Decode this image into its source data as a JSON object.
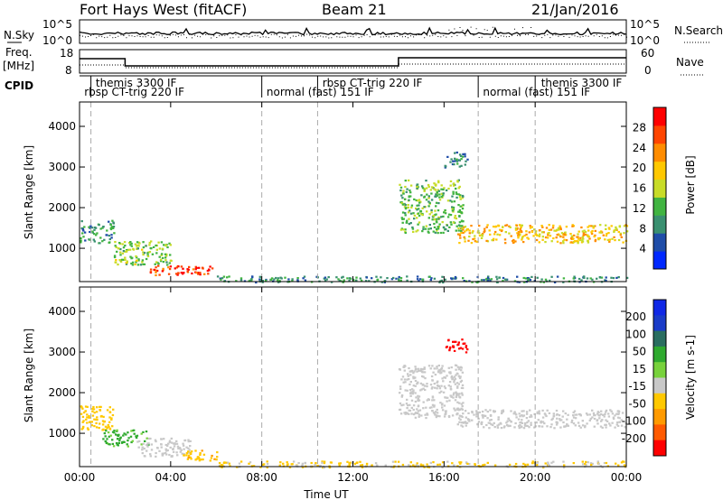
{
  "header": {
    "title": "Fort Hays West (fitACF)",
    "beam": "Beam 21",
    "date": "21/Jan/2016"
  },
  "noise_panel": {
    "left_label": "N.Sky",
    "right_label": "N.Search",
    "left_ticks": [
      "10^5",
      "10^0"
    ],
    "right_ticks": [
      "10^5",
      "10^0"
    ]
  },
  "freq_panel": {
    "left_label_1": "Freq.",
    "left_label_2": "[MHz]",
    "right_label": "Nave",
    "left_ticks": [
      "18",
      "8"
    ],
    "right_ticks": [
      "60",
      "0"
    ]
  },
  "cpid": {
    "label": "CPID",
    "segments": [
      {
        "text": "rbsp CT-trig 220 IF",
        "row": 2,
        "x_hour": 0.05
      },
      {
        "text": "themis 3300 IF",
        "row": 1,
        "x_hour": 0.55
      },
      {
        "text": "normal (fast) 151 IF",
        "row": 2,
        "x_hour": 8.05
      },
      {
        "text": "rbsp CT-trig 220 IF",
        "row": 1,
        "x_hour": 10.5
      },
      {
        "text": "normal (fast) 151 IF",
        "row": 2,
        "x_hour": 17.55
      },
      {
        "text": "themis 3300 IF",
        "row": 1,
        "x_hour": 20.1
      }
    ],
    "boundaries_hours": [
      0.5,
      8.0,
      10.45,
      17.5,
      20.0
    ]
  },
  "colors": {
    "power": [
      "#0028ff",
      "#1f4da8",
      "#3a9070",
      "#41b441",
      "#c8dc28",
      "#ffc800",
      "#ff8c00",
      "#ff4500",
      "#ff0000"
    ],
    "velocity": [
      "#ff0000",
      "#ff5a00",
      "#ff9a00",
      "#ffc800",
      "#c8c8c8",
      "#78d23c",
      "#2faa2f",
      "#2a6e60",
      "#1a3cc8",
      "#1028e6"
    ]
  },
  "chart_data": [
    {
      "type": "heatmap",
      "title": "",
      "xlabel": "",
      "ylabel": "Slant Range [km]",
      "xlim": [
        0,
        24
      ],
      "ylim": [
        180,
        4600
      ],
      "x_ticks": [
        "00:00",
        "04:00",
        "08:00",
        "12:00",
        "16:00",
        "20:00",
        "00:00"
      ],
      "y_ticks": [
        1000,
        2000,
        3000,
        4000
      ],
      "colorbar": {
        "label": "Power [dB]",
        "ticks": [
          4,
          8,
          12,
          16,
          20,
          24,
          28
        ],
        "range": [
          0,
          32
        ]
      },
      "regions": [
        {
          "t": [
            0.0,
            1.5
          ],
          "r": [
            1150,
            1700
          ],
          "value": 10
        },
        {
          "t": [
            1.5,
            4.0
          ],
          "r": [
            600,
            1200
          ],
          "value": 14
        },
        {
          "t": [
            3.0,
            5.8
          ],
          "r": [
            350,
            600
          ],
          "value": 27
        },
        {
          "t": [
            14.0,
            16.8
          ],
          "r": [
            1400,
            2700
          ],
          "value": 13
        },
        {
          "t": [
            16.5,
            24.0
          ],
          "r": [
            1150,
            1600
          ],
          "value": 20
        },
        {
          "t": [
            16.0,
            17.0
          ],
          "r": [
            3000,
            3400
          ],
          "value": 8
        },
        {
          "t": [
            6.0,
            24.0
          ],
          "r": [
            180,
            330
          ],
          "value": 9
        }
      ]
    },
    {
      "type": "heatmap",
      "title": "",
      "xlabel": "Time UT",
      "ylabel": "Slant Range [km]",
      "xlim": [
        0,
        24
      ],
      "ylim": [
        180,
        4600
      ],
      "x_ticks": [
        "00:00",
        "04:00",
        "08:00",
        "12:00",
        "16:00",
        "20:00",
        "00:00"
      ],
      "y_ticks": [
        1000,
        2000,
        3000,
        4000
      ],
      "colorbar": {
        "label": "Velocity [m s-1]",
        "ticks": [
          200,
          100,
          50,
          15,
          -15,
          -50,
          -100,
          -200
        ]
      },
      "regions": [
        {
          "t": [
            0.0,
            1.5
          ],
          "r": [
            1100,
            1700
          ],
          "value": -30
        },
        {
          "t": [
            1.0,
            3.0
          ],
          "r": [
            700,
            1100
          ],
          "value": 60
        },
        {
          "t": [
            2.5,
            5.0
          ],
          "r": [
            450,
            900
          ],
          "value": 0
        },
        {
          "t": [
            4.5,
            6.0
          ],
          "r": [
            350,
            600
          ],
          "value": -40
        },
        {
          "t": [
            14.0,
            16.8
          ],
          "r": [
            1400,
            2700
          ],
          "value": 0
        },
        {
          "t": [
            16.5,
            24.0
          ],
          "r": [
            1150,
            1600
          ],
          "value": 0
        },
        {
          "t": [
            16.0,
            17.0
          ],
          "r": [
            3000,
            3350
          ],
          "value": -250
        },
        {
          "t": [
            6.0,
            24.0
          ],
          "r": [
            180,
            330
          ],
          "value": -20
        }
      ]
    }
  ]
}
